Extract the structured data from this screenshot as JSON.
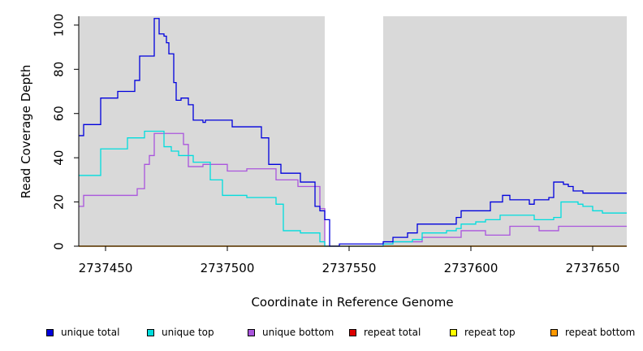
{
  "chart_data": {
    "type": "line",
    "step": true,
    "title": "",
    "xlabel": "Coordinate in Reference Genome",
    "ylabel": "Read Coverage Depth",
    "xlim": [
      2737439,
      2737664
    ],
    "ylim": [
      0,
      104
    ],
    "xticks": [
      2737450,
      2737500,
      2737550,
      2737600,
      2737650
    ],
    "xtick_labels": [
      "2737450",
      "2737500",
      "2737550",
      "2737600",
      "2737650"
    ],
    "yticks": [
      0,
      20,
      40,
      60,
      80,
      100
    ],
    "ytick_labels": [
      "0",
      "20",
      "40",
      "60",
      "80",
      "100"
    ],
    "background": "#d9d9d9",
    "highlight_region": [
      2737540,
      2737564
    ],
    "highlight_color": "#ffffff",
    "series": [
      {
        "name": "unique total",
        "color": "#0000dd",
        "x": [
          2737439,
          2737441,
          2737448,
          2737455,
          2737462,
          2737464,
          2737470,
          2737472,
          2737474,
          2737475,
          2737476,
          2737478,
          2737479,
          2737481,
          2737484,
          2737486,
          2737490,
          2737491,
          2737494,
          2737496,
          2737497,
          2737500,
          2737502,
          2737514,
          2737517,
          2737522,
          2737530,
          2737532,
          2737534,
          2737536,
          2737538,
          2737540,
          2737542,
          2737544,
          2737546,
          2737548,
          2737550,
          2737552,
          2737554,
          2737556,
          2737558,
          2737560,
          2737564,
          2737566,
          2737568,
          2737574,
          2737578,
          2737582,
          2737588,
          2737594,
          2737596,
          2737598,
          2737602,
          2737608,
          2737613,
          2737616,
          2737618,
          2737621,
          2737624,
          2737626,
          2737628,
          2737630,
          2737632,
          2737634,
          2737636,
          2737638,
          2737640,
          2737642,
          2737644,
          2737646,
          2737648,
          2737650,
          2737652,
          2737654,
          2737656,
          2737658,
          2737660,
          2737662
        ],
        "y": [
          50,
          55,
          67,
          70,
          75,
          86,
          103,
          96,
          95,
          92,
          87,
          74,
          66,
          67,
          64,
          57,
          56,
          57,
          57,
          57,
          57,
          57,
          54,
          49,
          37,
          33,
          29,
          29,
          29,
          18,
          16,
          12,
          0,
          0,
          1,
          1,
          1,
          1,
          1,
          1,
          1,
          1,
          2,
          2,
          4,
          6,
          10,
          10,
          10,
          13,
          16,
          16,
          16,
          20,
          23,
          21,
          21,
          21,
          19,
          21,
          21,
          21,
          22,
          29,
          29,
          28,
          27,
          25,
          25,
          24,
          24,
          24,
          24,
          24,
          24,
          24,
          24,
          24
        ]
      },
      {
        "name": "unique top",
        "color": "#00dddd",
        "x": [
          2737439,
          2737448,
          2737459,
          2737466,
          2737474,
          2737477,
          2737480,
          2737486,
          2737493,
          2737498,
          2737508,
          2737520,
          2737523,
          2737530,
          2737538,
          2737540,
          2737544,
          2737548,
          2737552,
          2737560,
          2737564,
          2737568,
          2737576,
          2737580,
          2737590,
          2737594,
          2737596,
          2737602,
          2737606,
          2737612,
          2737618,
          2737626,
          2737630,
          2737634,
          2737637,
          2737641,
          2737644,
          2737646,
          2737650,
          2737654,
          2737660
        ],
        "y": [
          32,
          44,
          49,
          52,
          45,
          43,
          41,
          38,
          30,
          23,
          22,
          19,
          7,
          6,
          2,
          0,
          0,
          0,
          0,
          0,
          1,
          2,
          3,
          6,
          7,
          8,
          10,
          11,
          12,
          14,
          14,
          12,
          12,
          13,
          20,
          20,
          19,
          18,
          16,
          15,
          15
        ]
      },
      {
        "name": "unique bottom",
        "color": "#aa55dd",
        "x": [
          2737439,
          2737441,
          2737454,
          2737463,
          2737466,
          2737468,
          2737470,
          2737474,
          2737479,
          2737482,
          2737484,
          2737486,
          2737490,
          2737500,
          2737508,
          2737513,
          2737520,
          2737529,
          2737532,
          2737538,
          2737540,
          2737544,
          2737548,
          2737552,
          2737560,
          2737564,
          2737568,
          2737575,
          2737580,
          2737590,
          2737594,
          2737596,
          2737602,
          2737606,
          2737612,
          2737616,
          2737622,
          2737628,
          2737632,
          2737636,
          2737644,
          2737650,
          2737660
        ],
        "y": [
          18,
          23,
          23,
          26,
          37,
          41,
          51,
          51,
          51,
          46,
          36,
          36,
          37,
          34,
          35,
          35,
          30,
          27,
          27,
          17,
          0,
          0,
          0,
          0,
          0,
          1,
          2,
          2,
          4,
          4,
          4,
          7,
          7,
          5,
          5,
          9,
          9,
          7,
          7,
          9,
          9,
          9,
          9
        ]
      },
      {
        "name": "repeat total",
        "color": "#dd0000",
        "x": [
          2737439,
          2737664
        ],
        "y": [
          0,
          0
        ]
      },
      {
        "name": "repeat top",
        "color": "#ffff00",
        "x": [
          2737439,
          2737664
        ],
        "y": [
          0,
          0
        ]
      },
      {
        "name": "repeat bottom",
        "color": "#ff9900",
        "x": [
          2737439,
          2737664
        ],
        "y": [
          0,
          0
        ]
      }
    ],
    "legend": "bottom"
  }
}
